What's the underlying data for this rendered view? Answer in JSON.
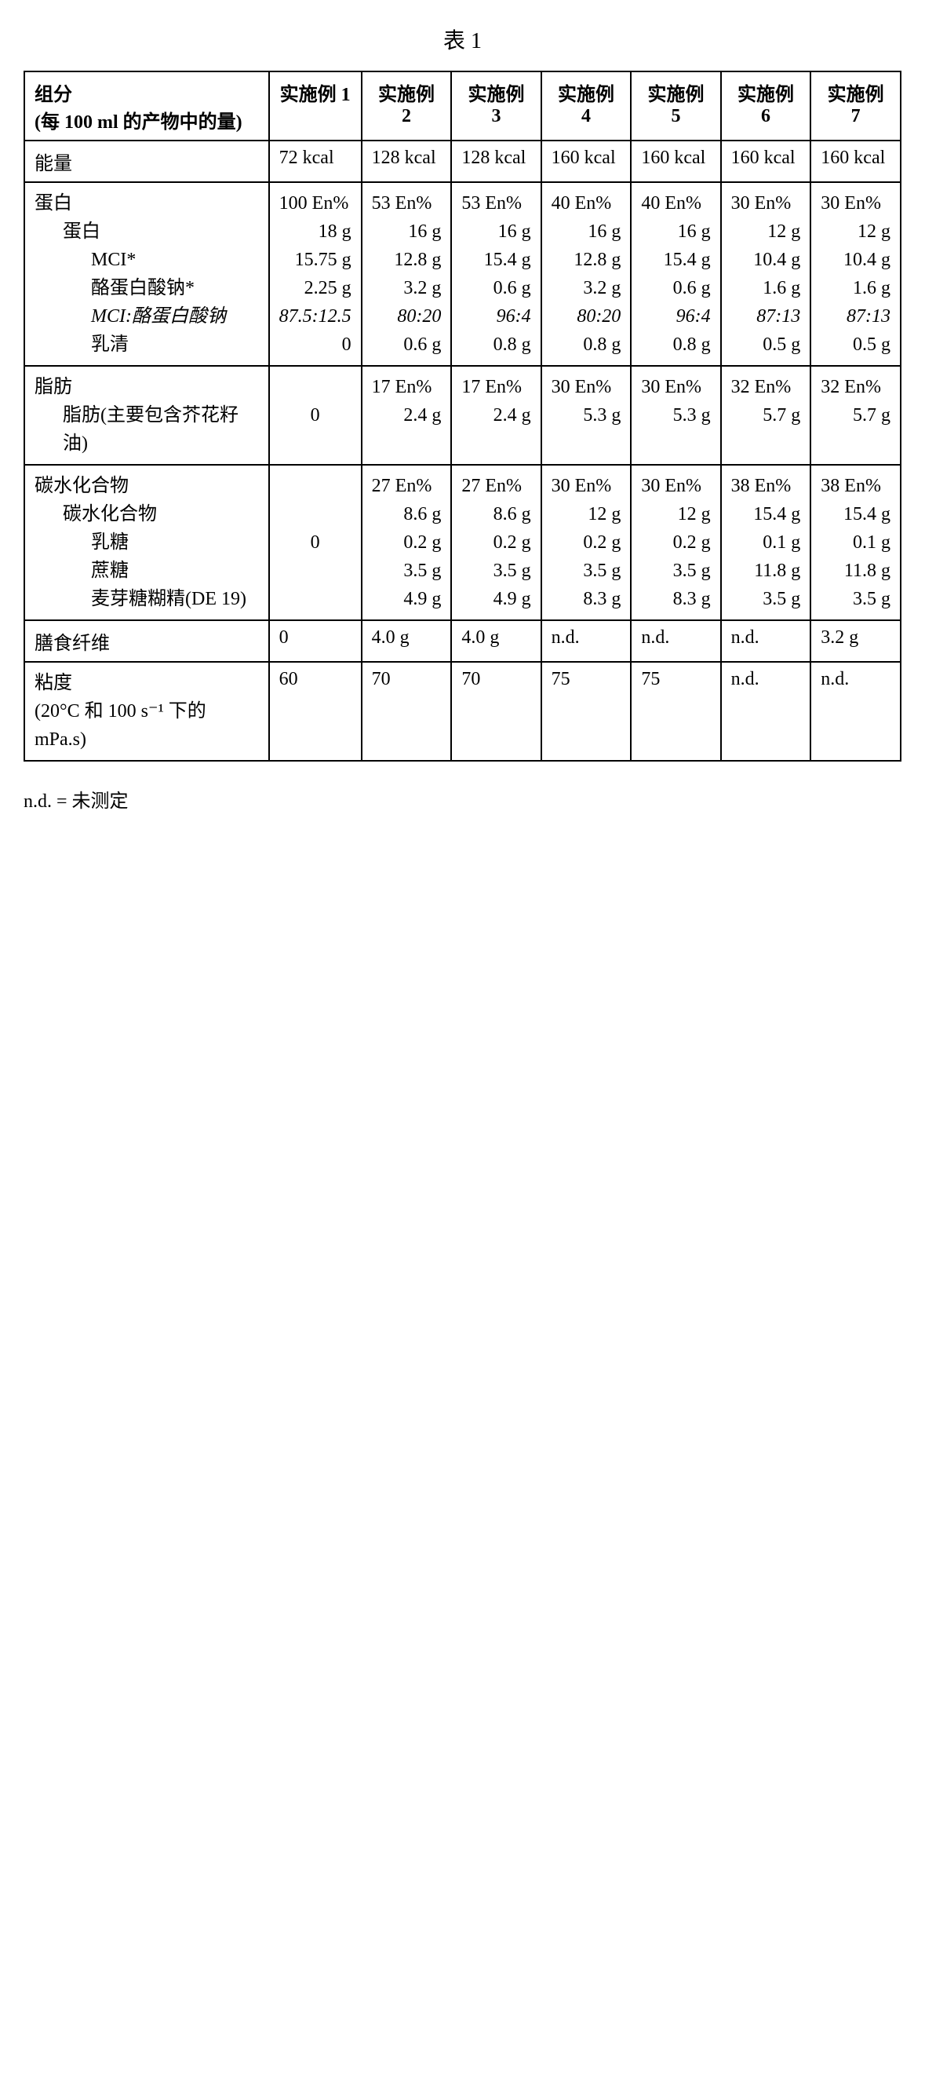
{
  "title": "表 1",
  "header": {
    "component": "组分",
    "component_sub": "(每 100 ml 的产物中的量)",
    "cols": [
      "实施例 1",
      "实施例 2",
      "实施例 3",
      "实施例 4",
      "实施例 5",
      "实施例 6",
      "实施例 7"
    ]
  },
  "rows": {
    "energy": {
      "label": "能量",
      "values": [
        "72 kcal",
        "128 kcal",
        "128 kcal",
        "160 kcal",
        "160 kcal",
        "160 kcal",
        "160 kcal"
      ]
    },
    "protein": {
      "label": "蛋白",
      "sub_labels": {
        "protein": "蛋白",
        "mci": "MCI*",
        "nacas": "酪蛋白酸钠*",
        "ratio": "MCI:酪蛋白酸钠",
        "whey": "乳清"
      },
      "cols": [
        {
          "en": "100 En%",
          "protein": "18 g",
          "mci": "15.75 g",
          "nacas": "2.25 g",
          "ratio": "87.5:12.5",
          "whey": "0"
        },
        {
          "en": "53 En%",
          "protein": "16 g",
          "mci": "12.8 g",
          "nacas": "3.2 g",
          "ratio": "80:20",
          "whey": "0.6 g"
        },
        {
          "en": "53 En%",
          "protein": "16 g",
          "mci": "15.4 g",
          "nacas": "0.6 g",
          "ratio": "96:4",
          "whey": "0.8 g"
        },
        {
          "en": "40 En%",
          "protein": "16 g",
          "mci": "12.8 g",
          "nacas": "3.2 g",
          "ratio": "80:20",
          "whey": "0.8 g"
        },
        {
          "en": "40 En%",
          "protein": "16 g",
          "mci": "15.4 g",
          "nacas": "0.6 g",
          "ratio": "96:4",
          "whey": "0.8 g"
        },
        {
          "en": "30 En%",
          "protein": "12 g",
          "mci": "10.4 g",
          "nacas": "1.6 g",
          "ratio": "87:13",
          "whey": "0.5 g"
        },
        {
          "en": "30 En%",
          "protein": "12 g",
          "mci": "10.4 g",
          "nacas": "1.6 g",
          "ratio": "87:13",
          "whey": "0.5 g"
        }
      ]
    },
    "fat": {
      "label": "脂肪",
      "sub_label": "脂肪(主要包含芥花籽油)",
      "cols": [
        {
          "en": "",
          "fat": "0"
        },
        {
          "en": "17 En%",
          "fat": "2.4 g"
        },
        {
          "en": "17 En%",
          "fat": "2.4 g"
        },
        {
          "en": "30 En%",
          "fat": "5.3 g"
        },
        {
          "en": "30 En%",
          "fat": "5.3 g"
        },
        {
          "en": "32 En%",
          "fat": "5.7 g"
        },
        {
          "en": "32 En%",
          "fat": "5.7 g"
        }
      ]
    },
    "carb": {
      "label": "碳水化合物",
      "sub_labels": {
        "carb": "碳水化合物",
        "lactose": "乳糖",
        "sucrose": "蔗糖",
        "malto": "麦芽糖糊精(DE 19)"
      },
      "cols": [
        {
          "en": "",
          "carb": "0",
          "lactose": "",
          "sucrose": "",
          "malto": ""
        },
        {
          "en": "27 En%",
          "carb": "8.6 g",
          "lactose": "0.2 g",
          "sucrose": "3.5 g",
          "malto": "4.9 g"
        },
        {
          "en": "27 En%",
          "carb": "8.6 g",
          "lactose": "0.2 g",
          "sucrose": "3.5 g",
          "malto": "4.9 g"
        },
        {
          "en": "30 En%",
          "carb": "12 g",
          "lactose": "0.2 g",
          "sucrose": "3.5 g",
          "malto": "8.3 g"
        },
        {
          "en": "30 En%",
          "carb": "12 g",
          "lactose": "0.2 g",
          "sucrose": "3.5 g",
          "malto": "8.3 g"
        },
        {
          "en": "38 En%",
          "carb": "15.4 g",
          "lactose": "0.1 g",
          "sucrose": "11.8 g",
          "malto": "3.5 g"
        },
        {
          "en": "38 En%",
          "carb": "15.4 g",
          "lactose": "0.1 g",
          "sucrose": "11.8 g",
          "malto": "3.5 g"
        }
      ]
    },
    "fiber": {
      "label": "膳食纤维",
      "values": [
        "0",
        "4.0 g",
        "4.0 g",
        "n.d.",
        "n.d.",
        "n.d.",
        "3.2 g"
      ]
    },
    "viscosity": {
      "label": "粘度",
      "sub_label": "(20°C 和 100 s⁻¹ 下的 mPa.s)",
      "values": [
        "60",
        "70",
        "70",
        "75",
        "75",
        "n.d.",
        "n.d."
      ]
    }
  },
  "footnote": "n.d. = 未测定",
  "style": {
    "border_color": "#000000",
    "background": "#ffffff",
    "font_family": "Times New Roman",
    "base_font_size": 24
  }
}
